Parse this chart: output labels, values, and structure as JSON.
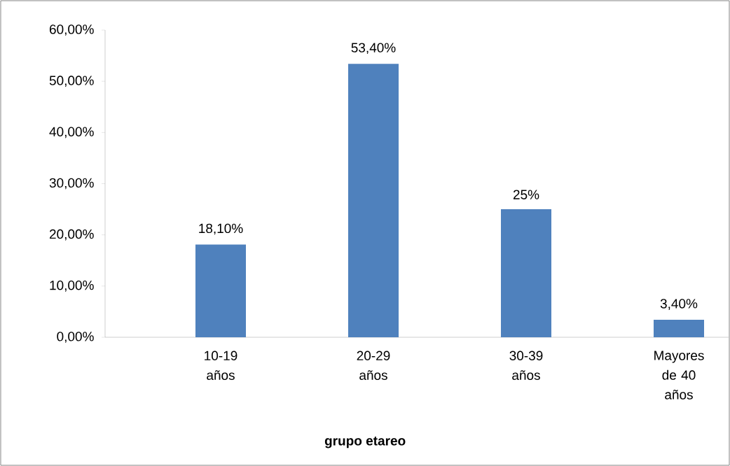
{
  "chart_data": {
    "type": "bar",
    "xlabel": "grupo etareo",
    "categories": [
      "10-19 años",
      "20-29 años",
      "30-39 años",
      "Mayores de 40 años"
    ],
    "values": [
      18.1,
      53.4,
      25,
      3.4
    ],
    "value_labels": [
      "18,10%",
      "53,40%",
      "25%",
      "3,40%"
    ],
    "color": "#4f81bd",
    "ylim": [
      0,
      60
    ],
    "yticks": [
      {
        "value": 0,
        "label": "0,00%"
      },
      {
        "value": 10,
        "label": "10,00%"
      },
      {
        "value": 20,
        "label": "20,00%"
      },
      {
        "value": 30,
        "label": "30,00%"
      },
      {
        "value": 40,
        "label": "40,00%"
      },
      {
        "value": 50,
        "label": "50,00%"
      },
      {
        "value": 60,
        "label": "60,00%"
      }
    ]
  }
}
